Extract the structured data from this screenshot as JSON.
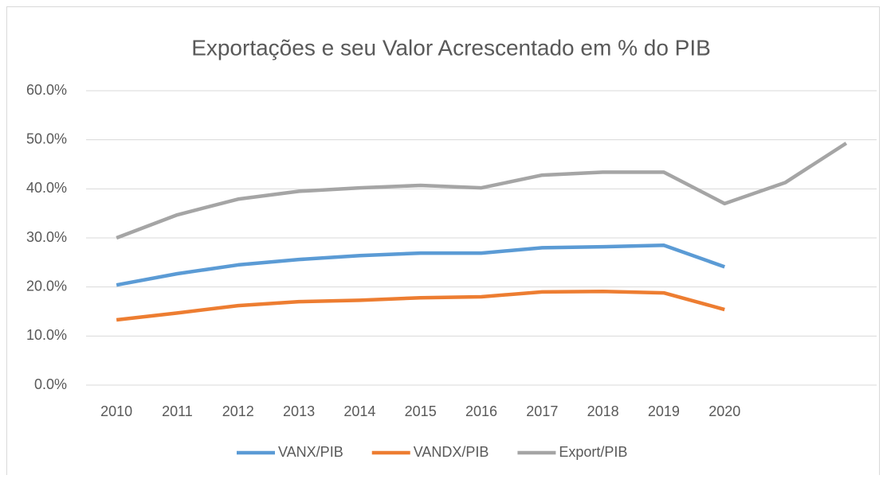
{
  "chart_data": {
    "type": "line",
    "title": "Exportações e seu Valor Acrescentado em % do PIB",
    "categories": [
      "2010",
      "2011",
      "2012",
      "2013",
      "2014",
      "2015",
      "2016",
      "2017",
      "2018",
      "2019",
      "2020",
      null,
      null
    ],
    "series": [
      {
        "name": "VANX/PIB",
        "color": "#5b9bd5",
        "values": [
          20.4,
          22.7,
          24.5,
          25.6,
          26.4,
          26.9,
          26.9,
          28.0,
          28.2,
          28.5,
          24.1,
          null,
          null
        ]
      },
      {
        "name": "VANDX/PIB",
        "color": "#ed7d31",
        "values": [
          13.3,
          14.7,
          16.2,
          17.0,
          17.3,
          17.8,
          18.0,
          19.0,
          19.1,
          18.8,
          15.4,
          null,
          null
        ]
      },
      {
        "name": "Export/PIB",
        "color": "#a5a5a5",
        "values": [
          30.0,
          34.7,
          37.9,
          39.5,
          40.2,
          40.7,
          40.2,
          42.8,
          43.4,
          43.4,
          37.0,
          41.3,
          49.3
        ]
      }
    ],
    "ylim": [
      0,
      60
    ],
    "yticks": [
      {
        "value": 0,
        "label": "0.0%"
      },
      {
        "value": 10,
        "label": "10.0%"
      },
      {
        "value": 20,
        "label": "20.0%"
      },
      {
        "value": 30,
        "label": "30.0%"
      },
      {
        "value": 40,
        "label": "40.0%"
      },
      {
        "value": 50,
        "label": "50.0%"
      },
      {
        "value": 60,
        "label": "60.0%"
      }
    ],
    "grid": true,
    "legend": "bottom"
  }
}
